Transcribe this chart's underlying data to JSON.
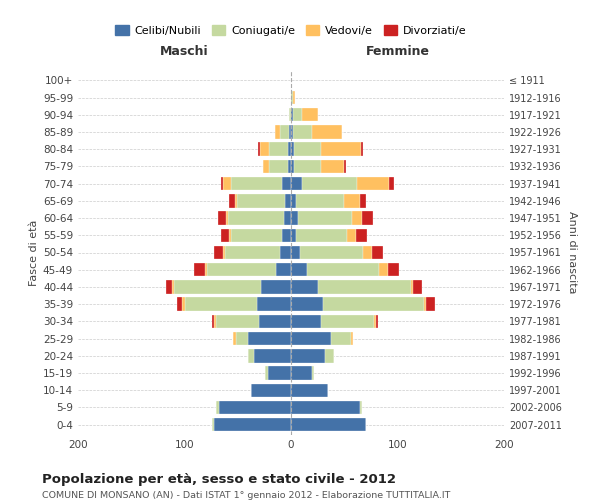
{
  "age_groups": [
    "0-4",
    "5-9",
    "10-14",
    "15-19",
    "20-24",
    "25-29",
    "30-34",
    "35-39",
    "40-44",
    "45-49",
    "50-54",
    "55-59",
    "60-64",
    "65-69",
    "70-74",
    "75-79",
    "80-84",
    "85-89",
    "90-94",
    "95-99",
    "100+"
  ],
  "birth_years": [
    "2007-2011",
    "2002-2006",
    "1997-2001",
    "1992-1996",
    "1987-1991",
    "1982-1986",
    "1977-1981",
    "1972-1976",
    "1967-1971",
    "1962-1966",
    "1957-1961",
    "1952-1956",
    "1947-1951",
    "1942-1946",
    "1937-1941",
    "1932-1936",
    "1927-1931",
    "1922-1926",
    "1917-1921",
    "1912-1916",
    "≤ 1911"
  ],
  "males": {
    "celibi": [
      72,
      68,
      38,
      22,
      35,
      40,
      30,
      32,
      28,
      14,
      10,
      8,
      7,
      6,
      8,
      3,
      3,
      2,
      0,
      0,
      0
    ],
    "coniugati": [
      2,
      2,
      0,
      2,
      5,
      12,
      40,
      68,
      82,
      65,
      52,
      48,
      52,
      45,
      48,
      18,
      18,
      8,
      2,
      0,
      0
    ],
    "vedovi": [
      0,
      0,
      0,
      0,
      0,
      2,
      2,
      2,
      2,
      2,
      2,
      2,
      2,
      2,
      8,
      5,
      8,
      5,
      0,
      0,
      0
    ],
    "divorziati": [
      0,
      0,
      0,
      0,
      0,
      0,
      2,
      5,
      5,
      10,
      8,
      8,
      8,
      5,
      2,
      0,
      2,
      0,
      0,
      0,
      0
    ]
  },
  "females": {
    "nubili": [
      70,
      65,
      35,
      20,
      32,
      38,
      28,
      30,
      25,
      15,
      8,
      5,
      7,
      5,
      10,
      3,
      3,
      2,
      2,
      0,
      0
    ],
    "coniugate": [
      0,
      2,
      0,
      2,
      8,
      18,
      50,
      95,
      88,
      68,
      60,
      48,
      50,
      45,
      52,
      25,
      25,
      18,
      8,
      2,
      0
    ],
    "vedove": [
      0,
      0,
      0,
      0,
      0,
      2,
      2,
      2,
      2,
      8,
      8,
      8,
      10,
      15,
      30,
      22,
      38,
      28,
      15,
      2,
      0
    ],
    "divorziate": [
      0,
      0,
      0,
      0,
      0,
      0,
      2,
      8,
      8,
      10,
      10,
      10,
      10,
      5,
      5,
      2,
      2,
      0,
      0,
      0,
      0
    ]
  },
  "colors": {
    "celibi": "#4472a8",
    "coniugati": "#c5d9a0",
    "vedovi": "#ffc060",
    "divorziati": "#cc2222"
  },
  "title": "Popolazione per età, sesso e stato civile - 2012",
  "subtitle": "COMUNE DI MONSANO (AN) - Dati ISTAT 1° gennaio 2012 - Elaborazione TUTTITALIA.IT",
  "xlabel_maschi": "Maschi",
  "xlabel_femmine": "Femmine",
  "ylabel_left": "Fasce di età",
  "ylabel_right": "Anni di nascita",
  "xlim": 200,
  "background_color": "#ffffff",
  "grid_color": "#cccccc"
}
